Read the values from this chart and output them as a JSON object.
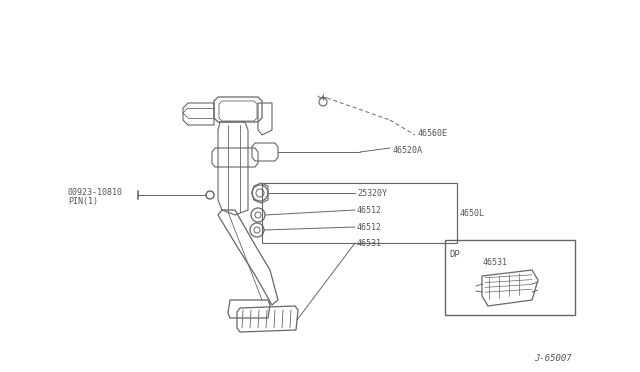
{
  "bg_color": "#ffffff",
  "line_color": "#666666",
  "text_color": "#555555",
  "fig_width": 6.4,
  "fig_height": 3.72,
  "dpi": 100,
  "diagram_number": "J-65007",
  "inset_label": "DP",
  "inset_part": "46531"
}
